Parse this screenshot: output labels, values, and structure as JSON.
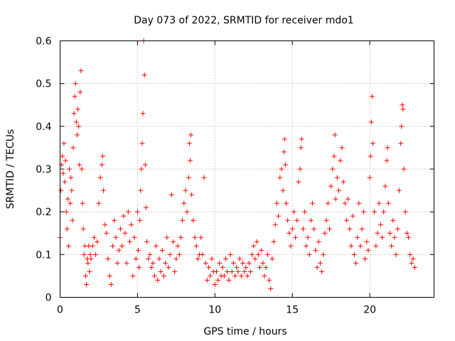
{
  "chart_data": {
    "type": "scatter",
    "title": "Day 073 of 2022, SRMTID for receiver mdo1",
    "xlabel": "GPS time / hours",
    "ylabel": "SRMTID / TECUs",
    "xlim": [
      0,
      24.15
    ],
    "ylim": [
      0,
      0.6
    ],
    "xticks": [
      0,
      5,
      10,
      15,
      20
    ],
    "xtick_labels": [
      "0",
      "5",
      "10",
      "15",
      "20"
    ],
    "yticks": [
      0,
      0.1,
      0.2,
      0.3,
      0.4,
      0.5,
      0.6
    ],
    "ytick_labels": [
      "0",
      "0.1",
      "0.2",
      "0.3",
      "0.4",
      "0.5",
      "0.6"
    ],
    "grid": true,
    "marker": "plus",
    "series": [
      {
        "name": "SRMTID",
        "color": "#ff0000",
        "points": [
          [
            0.0,
            0.14
          ],
          [
            0.05,
            0.25
          ],
          [
            0.1,
            0.31
          ],
          [
            0.15,
            0.33
          ],
          [
            0.2,
            0.29
          ],
          [
            0.25,
            0.36
          ],
          [
            0.3,
            0.27
          ],
          [
            0.35,
            0.32
          ],
          [
            0.4,
            0.2
          ],
          [
            0.45,
            0.16
          ],
          [
            0.5,
            0.23
          ],
          [
            0.55,
            0.12
          ],
          [
            0.6,
            0.3
          ],
          [
            0.65,
            0.22
          ],
          [
            0.7,
            0.28
          ],
          [
            0.75,
            0.25
          ],
          [
            0.8,
            0.18
          ],
          [
            0.85,
            0.35
          ],
          [
            0.9,
            0.43
          ],
          [
            0.95,
            0.47
          ],
          [
            1.0,
            0.5
          ],
          [
            1.05,
            0.41
          ],
          [
            1.1,
            0.38
          ],
          [
            1.15,
            0.44
          ],
          [
            1.2,
            0.4
          ],
          [
            1.25,
            0.31
          ],
          [
            1.3,
            0.48
          ],
          [
            1.35,
            0.53
          ],
          [
            1.4,
            0.3
          ],
          [
            1.45,
            0.22
          ],
          [
            1.5,
            0.16
          ],
          [
            1.55,
            0.1
          ],
          [
            1.6,
            0.12
          ],
          [
            1.65,
            0.05
          ],
          [
            1.7,
            0.03
          ],
          [
            1.75,
            0.09
          ],
          [
            1.8,
            0.08
          ],
          [
            1.85,
            0.12
          ],
          [
            1.9,
            0.06
          ],
          [
            1.95,
            0.1
          ],
          [
            2.0,
            0.09
          ],
          [
            2.1,
            0.12
          ],
          [
            2.2,
            0.14
          ],
          [
            2.3,
            0.1
          ],
          [
            2.4,
            0.13
          ],
          [
            2.5,
            0.22
          ],
          [
            2.6,
            0.28
          ],
          [
            2.7,
            0.31
          ],
          [
            2.75,
            0.33
          ],
          [
            2.8,
            0.25
          ],
          [
            2.9,
            0.17
          ],
          [
            3.0,
            0.15
          ],
          [
            3.1,
            0.09
          ],
          [
            3.2,
            0.05
          ],
          [
            3.3,
            0.03
          ],
          [
            3.4,
            0.12
          ],
          [
            3.5,
            0.18
          ],
          [
            3.6,
            0.14
          ],
          [
            3.7,
            0.08
          ],
          [
            3.8,
            0.11
          ],
          [
            3.9,
            0.16
          ],
          [
            4.0,
            0.12
          ],
          [
            4.1,
            0.19
          ],
          [
            4.2,
            0.15
          ],
          [
            4.3,
            0.08
          ],
          [
            4.4,
            0.2
          ],
          [
            4.5,
            0.13
          ],
          [
            4.6,
            0.17
          ],
          [
            4.7,
            0.05
          ],
          [
            4.8,
            0.14
          ],
          [
            4.9,
            0.09
          ],
          [
            5.0,
            0.2
          ],
          [
            5.05,
            0.11
          ],
          [
            5.1,
            0.07
          ],
          [
            5.15,
            0.18
          ],
          [
            5.2,
            0.25
          ],
          [
            5.25,
            0.3
          ],
          [
            5.3,
            0.36
          ],
          [
            5.35,
            0.43
          ],
          [
            5.4,
            0.6
          ],
          [
            5.45,
            0.52
          ],
          [
            5.5,
            0.31
          ],
          [
            5.55,
            0.21
          ],
          [
            5.6,
            0.13
          ],
          [
            5.7,
            0.09
          ],
          [
            5.8,
            0.1
          ],
          [
            5.9,
            0.07
          ],
          [
            6.0,
            0.08
          ],
          [
            6.1,
            0.05
          ],
          [
            6.2,
            0.12
          ],
          [
            6.3,
            0.04
          ],
          [
            6.4,
            0.09
          ],
          [
            6.5,
            0.06
          ],
          [
            6.6,
            0.11
          ],
          [
            6.7,
            0.05
          ],
          [
            6.8,
            0.08
          ],
          [
            6.9,
            0.14
          ],
          [
            7.0,
            0.07
          ],
          [
            7.1,
            0.1
          ],
          [
            7.2,
            0.24
          ],
          [
            7.3,
            0.13
          ],
          [
            7.4,
            0.06
          ],
          [
            7.5,
            0.09
          ],
          [
            7.6,
            0.12
          ],
          [
            7.7,
            0.1
          ],
          [
            7.8,
            0.14
          ],
          [
            7.9,
            0.18
          ],
          [
            8.0,
            0.22
          ],
          [
            8.1,
            0.25
          ],
          [
            8.2,
            0.2
          ],
          [
            8.3,
            0.28
          ],
          [
            8.35,
            0.36
          ],
          [
            8.4,
            0.32
          ],
          [
            8.45,
            0.38
          ],
          [
            8.5,
            0.24
          ],
          [
            8.6,
            0.18
          ],
          [
            8.7,
            0.14
          ],
          [
            8.8,
            0.12
          ],
          [
            8.9,
            0.09
          ],
          [
            9.0,
            0.1
          ],
          [
            9.1,
            0.14
          ],
          [
            9.2,
            0.1
          ],
          [
            9.3,
            0.28
          ],
          [
            9.4,
            0.08
          ],
          [
            9.5,
            0.04
          ],
          [
            9.6,
            0.07
          ],
          [
            9.7,
            0.05
          ],
          [
            9.8,
            0.09
          ],
          [
            9.9,
            0.06
          ],
          [
            10.0,
            0.03
          ],
          [
            10.1,
            0.06
          ],
          [
            10.2,
            0.04
          ],
          [
            10.3,
            0.08
          ],
          [
            10.4,
            0.05
          ],
          [
            10.5,
            0.07
          ],
          [
            10.6,
            0.05
          ],
          [
            10.7,
            0.09
          ],
          [
            10.8,
            0.06
          ],
          [
            10.9,
            0.04
          ],
          [
            11.0,
            0.1
          ],
          [
            11.1,
            0.06
          ],
          [
            11.2,
            0.08
          ],
          [
            11.3,
            0.05
          ],
          [
            11.4,
            0.07
          ],
          [
            11.5,
            0.06
          ],
          [
            11.6,
            0.09
          ],
          [
            11.7,
            0.05
          ],
          [
            11.8,
            0.08
          ],
          [
            11.9,
            0.06
          ],
          [
            12.0,
            0.07
          ],
          [
            12.1,
            0.05
          ],
          [
            12.2,
            0.08
          ],
          [
            12.3,
            0.06
          ],
          [
            12.4,
            0.1
          ],
          [
            12.5,
            0.12
          ],
          [
            12.6,
            0.09
          ],
          [
            12.7,
            0.13
          ],
          [
            12.8,
            0.1
          ],
          [
            12.9,
            0.07
          ],
          [
            13.0,
            0.11
          ],
          [
            13.1,
            0.08
          ],
          [
            13.2,
            0.05
          ],
          [
            13.3,
            0.07
          ],
          [
            13.4,
            0.1
          ],
          [
            13.5,
            0.04
          ],
          [
            13.6,
            0.02
          ],
          [
            13.7,
            0.09
          ],
          [
            13.8,
            0.13
          ],
          [
            13.9,
            0.17
          ],
          [
            14.0,
            0.22
          ],
          [
            14.1,
            0.19
          ],
          [
            14.2,
            0.28
          ],
          [
            14.3,
            0.3
          ],
          [
            14.4,
            0.25
          ],
          [
            14.45,
            0.34
          ],
          [
            14.5,
            0.37
          ],
          [
            14.55,
            0.31
          ],
          [
            14.6,
            0.22
          ],
          [
            14.7,
            0.18
          ],
          [
            14.8,
            0.15
          ],
          [
            14.9,
            0.12
          ],
          [
            15.0,
            0.16
          ],
          [
            15.1,
            0.2
          ],
          [
            15.2,
            0.14
          ],
          [
            15.3,
            0.18
          ],
          [
            15.4,
            0.27
          ],
          [
            15.5,
            0.3
          ],
          [
            15.55,
            0.35
          ],
          [
            15.6,
            0.37
          ],
          [
            15.7,
            0.16
          ],
          [
            15.8,
            0.2
          ],
          [
            15.9,
            0.12
          ],
          [
            16.0,
            0.14
          ],
          [
            16.1,
            0.1
          ],
          [
            16.2,
            0.18
          ],
          [
            16.3,
            0.22
          ],
          [
            16.4,
            0.16
          ],
          [
            16.5,
            0.11
          ],
          [
            16.6,
            0.07
          ],
          [
            16.7,
            0.13
          ],
          [
            16.8,
            0.08
          ],
          [
            16.9,
            0.06
          ],
          [
            17.0,
            0.1
          ],
          [
            17.1,
            0.15
          ],
          [
            17.2,
            0.18
          ],
          [
            17.3,
            0.22
          ],
          [
            17.4,
            0.16
          ],
          [
            17.5,
            0.26
          ],
          [
            17.6,
            0.3
          ],
          [
            17.7,
            0.33
          ],
          [
            17.75,
            0.38
          ],
          [
            17.8,
            0.23
          ],
          [
            17.9,
            0.28
          ],
          [
            18.0,
            0.25
          ],
          [
            18.1,
            0.32
          ],
          [
            18.2,
            0.35
          ],
          [
            18.3,
            0.27
          ],
          [
            18.4,
            0.22
          ],
          [
            18.5,
            0.18
          ],
          [
            18.6,
            0.23
          ],
          [
            18.7,
            0.16
          ],
          [
            18.8,
            0.12
          ],
          [
            18.9,
            0.19
          ],
          [
            19.0,
            0.1
          ],
          [
            19.1,
            0.08
          ],
          [
            19.2,
            0.14
          ],
          [
            19.3,
            0.22
          ],
          [
            19.4,
            0.12
          ],
          [
            19.5,
            0.16
          ],
          [
            19.6,
            0.2
          ],
          [
            19.7,
            0.09
          ],
          [
            19.8,
            0.13
          ],
          [
            19.9,
            0.11
          ],
          [
            20.0,
            0.28
          ],
          [
            20.05,
            0.33
          ],
          [
            20.1,
            0.41
          ],
          [
            20.15,
            0.47
          ],
          [
            20.2,
            0.36
          ],
          [
            20.3,
            0.2
          ],
          [
            20.4,
            0.12
          ],
          [
            20.5,
            0.15
          ],
          [
            20.6,
            0.22
          ],
          [
            20.7,
            0.17
          ],
          [
            20.8,
            0.14
          ],
          [
            20.9,
            0.2
          ],
          [
            21.0,
            0.26
          ],
          [
            21.1,
            0.32
          ],
          [
            21.15,
            0.35
          ],
          [
            21.2,
            0.22
          ],
          [
            21.3,
            0.15
          ],
          [
            21.4,
            0.12
          ],
          [
            21.5,
            0.18
          ],
          [
            21.6,
            0.14
          ],
          [
            21.7,
            0.1
          ],
          [
            21.8,
            0.16
          ],
          [
            21.9,
            0.25
          ],
          [
            22.0,
            0.36
          ],
          [
            22.05,
            0.4
          ],
          [
            22.1,
            0.45
          ],
          [
            22.15,
            0.44
          ],
          [
            22.2,
            0.3
          ],
          [
            22.3,
            0.2
          ],
          [
            22.4,
            0.15
          ],
          [
            22.5,
            0.14
          ],
          [
            22.6,
            0.1
          ],
          [
            22.7,
            0.08
          ],
          [
            22.8,
            0.09
          ],
          [
            22.9,
            0.07
          ]
        ]
      }
    ]
  }
}
